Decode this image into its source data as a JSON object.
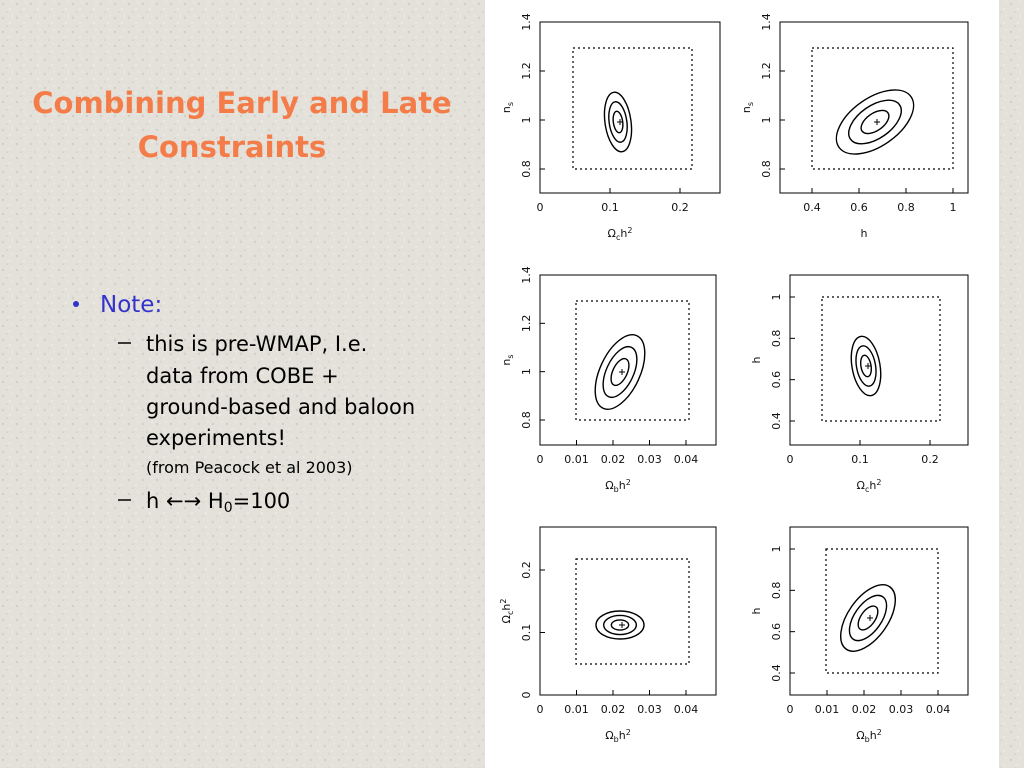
{
  "slide": {
    "title_lines": [
      "Combining Early and Late",
      "Constraints"
    ],
    "bullet": {
      "text": "Note:",
      "item1": {
        "lines": [
          "this is pre-WMAP, I.e.",
          "data from COBE +",
          "ground-based and baloon",
          "experiments!"
        ],
        "note": "(from Peacock et al 2003)"
      },
      "item2": {
        "text": "h",
        "arrows": "←→",
        "symbol": "H",
        "sub": "0",
        "rest": "=100"
      }
    }
  },
  "panels": [
    {
      "xticks": [
        0,
        0.1,
        0.2
      ],
      "yticks": [
        0.8,
        1,
        1.2,
        1.4
      ],
      "xlabel": {
        "main": "Ω",
        "sub": "c",
        "main2": "h",
        "sup": "2"
      },
      "ylabel": {
        "main": "n",
        "sub": "s"
      }
    },
    {
      "xticks": [
        0.4,
        0.6,
        0.8,
        1
      ],
      "yticks": [
        0.8,
        1,
        1.2,
        1.4
      ],
      "xlabel": {
        "main": "h"
      },
      "ylabel": {
        "main": "n",
        "sub": "s"
      }
    },
    {
      "xticks": [
        0,
        0.01,
        0.02,
        0.03,
        0.04
      ],
      "yticks": [
        0.8,
        1,
        1.2,
        1.4
      ],
      "xlabel": {
        "main": "Ω",
        "sub": "b",
        "main2": "h",
        "sup": "2"
      },
      "ylabel": {
        "main": "n",
        "sub": "s"
      }
    },
    {
      "xticks": [
        0,
        0.1,
        0.2
      ],
      "yticks": [
        0.4,
        0.6,
        0.8,
        1
      ],
      "xlabel": {
        "main": "Ω",
        "sub": "c",
        "main2": "h",
        "sup": "2"
      },
      "ylabel": {
        "main": "h"
      }
    },
    {
      "xticks": [
        0,
        0.01,
        0.02,
        0.03,
        0.04
      ],
      "yticks": [
        0,
        0.1,
        0.2
      ],
      "xlabel": {
        "main": "Ω",
        "sub": "b",
        "main2": "h",
        "sup": "2"
      },
      "ylabel": {
        "main": "Ω",
        "sub": "c",
        "main2": "h",
        "sup": "2"
      }
    },
    {
      "xticks": [
        0,
        0.01,
        0.02,
        0.03,
        0.04
      ],
      "yticks": [
        0.4,
        0.6,
        0.8,
        1
      ],
      "xlabel": {
        "main": "Ω",
        "sub": "b",
        "main2": "h",
        "sup": "2"
      },
      "ylabel": {
        "main": "h"
      }
    }
  ]
}
